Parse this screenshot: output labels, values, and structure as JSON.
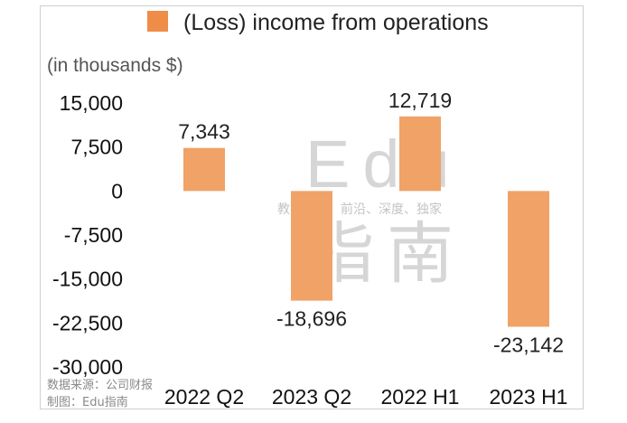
{
  "chart_data": {
    "type": "bar",
    "legend": "(Loss) income from operations",
    "legend_position": "top",
    "unit_label": "(in thousands $)",
    "categories": [
      "2022 Q2",
      "2023 Q2",
      "2022 H1",
      "2023 H1"
    ],
    "values": [
      7343,
      -18696,
      12719,
      -23142
    ],
    "value_labels": [
      "7,343",
      "-18,696",
      "12,719",
      "-23,142"
    ],
    "yticks": [
      "15,000",
      "7,500",
      "0",
      "-7,500",
      "-15,000",
      "-22,500",
      "-30,000"
    ],
    "ylim": [
      -30000,
      15000
    ],
    "bar_color": "#f0a267",
    "legend_color": "#ef8c48",
    "grid": false
  },
  "watermark": {
    "brand": "Edu",
    "slogan": "教育行业，前沿、深度、独家",
    "name": "指南"
  },
  "source": {
    "data_source": "数据来源：公司财报",
    "made_by": "制图：Edu指南"
  }
}
